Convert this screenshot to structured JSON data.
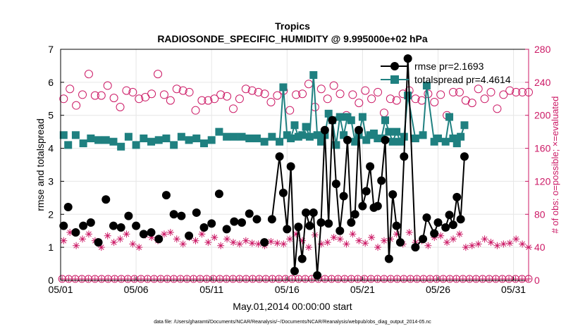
{
  "chart_data": {
    "type": "line",
    "title": "Tropics",
    "subtitle": "RADIOSONDE_SPECIFIC_HUMIDITY @ 9.995000e+02 hPa",
    "xlabel": "May.01,2014 00:00:00 start",
    "ylabel": "rmse and totalspread",
    "ylabel_right": "# of obs: o=possible; ×=evaluated",
    "footnote": "data file: /Users/gharamti/Documents/NCAR/Reanalysis/~/Documents/NCAR/Reanalysis/webpub/obs_diag_output_2014-05.nc",
    "xlim": [
      0,
      31
    ],
    "ylim": [
      0,
      7
    ],
    "ylim_right": [
      0,
      280
    ],
    "x_ticks": [
      0,
      5,
      10,
      15,
      20,
      25,
      30
    ],
    "x_tick_labels": [
      "05/01",
      "05/06",
      "05/11",
      "05/16",
      "05/21",
      "05/26",
      "05/31"
    ],
    "y_ticks": [
      0,
      1,
      2,
      3,
      4,
      5,
      6,
      7
    ],
    "y_tick_labels": [
      "0",
      "1",
      "2",
      "3",
      "4",
      "5",
      "6",
      "7"
    ],
    "y_right_ticks": [
      0,
      40,
      80,
      120,
      160,
      200,
      240,
      280
    ],
    "y_right_tick_labels": [
      "0",
      "40",
      "80",
      "120",
      "160",
      "200",
      "240",
      "280"
    ],
    "grid": true,
    "legend": "top-right",
    "colors": {
      "rmse": "#000000",
      "totalspread": "#1f8080",
      "obs": "#cc1a66"
    },
    "series": [
      {
        "name": "rmse",
        "legend_label": "rmse pr=2.1693",
        "axis": "left",
        "connect_from_day": 14,
        "values": [
          1.65,
          2.22,
          1.45,
          1.65,
          1.75,
          1.15,
          2.45,
          1.65,
          1.6,
          1.95,
          1.65,
          1.4,
          1.45,
          1.25,
          2.58,
          2.0,
          1.95,
          1.35,
          2.05,
          1.6,
          1.72,
          2.62,
          1.55,
          1.78,
          1.75,
          2.02,
          1.85,
          1.15,
          1.85,
          3.75,
          2.65,
          1.55,
          3.45,
          0.28,
          1.62,
          0.65,
          2.05,
          1.65,
          2.05,
          0.15,
          1.75,
          4.55,
          1.72,
          4.85,
          2.92,
          1.5,
          2.55,
          4.25,
          1.75,
          2.0,
          4.55,
          2.25,
          2.7,
          3.45,
          2.2,
          2.25,
          3.02,
          4.25,
          0.65,
          2.6,
          1.65,
          1.15,
          3.75,
          6.72,
          1.0,
          1.25,
          1.9,
          1.42,
          1.75,
          1.6,
          1.98,
          1.68,
          2.52,
          1.85,
          3.75
        ],
        "x": [
          0.2,
          0.5,
          1.0,
          1.5,
          2.0,
          2.5,
          3.0,
          3.5,
          4.0,
          4.5,
          5.0,
          5.5,
          6.0,
          6.5,
          7.0,
          7.5,
          8.0,
          8.5,
          9.0,
          9.5,
          10.0,
          10.5,
          11.0,
          11.5,
          12.0,
          12.5,
          13.0,
          13.5,
          14.0,
          14.5,
          14.75,
          15.0,
          15.25,
          15.5,
          15.75,
          16.0,
          16.25,
          16.5,
          16.75,
          17.0,
          17.25,
          17.5,
          17.75,
          18.0,
          18.25,
          18.5,
          18.75,
          19.0,
          19.25,
          19.5,
          19.75,
          20.0,
          20.25,
          20.5,
          20.75,
          21.0,
          21.25,
          21.5,
          21.75,
          22.0,
          22.25,
          22.5,
          22.75,
          23.0,
          23.5,
          24.0,
          24.25,
          24.75,
          25.0,
          25.5,
          25.75,
          26.0,
          26.25,
          26.5,
          26.75
        ]
      },
      {
        "name": "totalspread",
        "legend_label": "totalspread pr=4.4614",
        "axis": "left",
        "connect_from_day": 14,
        "x": [
          0.2,
          0.5,
          1.0,
          1.5,
          2.0,
          2.5,
          3.0,
          3.5,
          4.0,
          4.5,
          5.0,
          5.5,
          6.0,
          6.5,
          7.0,
          7.5,
          8.0,
          8.5,
          9.0,
          9.5,
          10.0,
          10.5,
          11.0,
          11.5,
          12.0,
          12.5,
          13.0,
          13.5,
          14.0,
          14.5,
          14.75,
          15.0,
          15.25,
          15.5,
          15.75,
          16.0,
          16.25,
          16.5,
          16.75,
          17.0,
          17.25,
          17.5,
          17.75,
          18.0,
          18.25,
          18.5,
          18.75,
          19.0,
          19.25,
          19.5,
          19.75,
          20.0,
          20.25,
          20.5,
          20.75,
          21.0,
          21.25,
          21.5,
          21.75,
          22.0,
          22.25,
          22.5,
          22.75,
          23.0,
          23.5,
          24.0,
          24.25,
          24.75,
          25.0,
          25.5,
          25.75,
          26.0,
          26.25,
          26.5,
          26.75
        ],
        "values": [
          4.4,
          4.1,
          4.4,
          4.15,
          4.3,
          4.25,
          4.25,
          4.2,
          4.05,
          4.35,
          4.1,
          4.3,
          4.2,
          4.25,
          4.3,
          4.1,
          4.35,
          4.25,
          4.3,
          4.15,
          4.25,
          4.5,
          4.35,
          4.35,
          4.35,
          4.3,
          4.3,
          4.2,
          4.35,
          4.2,
          5.85,
          4.4,
          4.3,
          4.7,
          4.35,
          4.4,
          4.65,
          4.35,
          6.22,
          4.4,
          4.2,
          4.4,
          5.05,
          4.85,
          4.1,
          4.95,
          4.4,
          4.95,
          4.85,
          4.2,
          4.4,
          4.95,
          4.25,
          4.4,
          4.45,
          4.3,
          4.3,
          4.85,
          4.5,
          4.2,
          4.5,
          4.2,
          4.35,
          5.6,
          4.3,
          4.4,
          5.9,
          4.2,
          4.3,
          4.2,
          4.95,
          4.3,
          4.15,
          4.35,
          4.7
        ]
      },
      {
        "name": "obs possible",
        "axis": "right",
        "marker": "circle",
        "values": [
          220,
          232,
          212,
          225,
          250,
          224,
          224,
          236,
          221,
          210,
          230,
          228,
          220,
          222,
          226,
          250,
          225,
          218,
          232,
          230,
          228,
          206,
          218,
          218,
          220,
          225,
          223,
          208,
          220,
          232,
          230,
          228,
          226,
          216,
          224,
          230,
          206,
          225,
          226,
          238,
          210,
          232,
          220,
          236,
          226,
          200,
          225,
          215,
          230,
          220,
          228,
          203,
          220,
          218,
          226,
          230,
          220,
          218,
          226,
          216,
          225,
          200,
          228,
          228,
          218,
          215,
          232,
          220,
          228,
          208,
          225,
          230,
          228,
          228,
          228
        ]
      },
      {
        "name": "obs evaluated",
        "axis": "right",
        "marker": "star",
        "values": [
          48,
          58,
          42,
          50,
          56,
          48,
          40,
          54,
          46,
          50,
          56,
          44,
          40,
          55,
          52,
          48,
          56,
          58,
          50,
          44,
          52,
          48,
          56,
          46,
          52,
          42,
          50,
          46,
          44,
          48,
          45,
          44,
          42,
          47,
          45,
          44,
          50,
          56,
          48,
          40,
          55,
          44,
          46,
          52,
          50,
          44,
          56,
          48,
          45,
          52,
          40,
          48,
          50,
          56,
          44,
          58,
          46,
          48,
          42,
          52,
          54,
          46,
          50,
          56,
          40,
          42,
          44,
          50,
          46,
          42,
          44,
          45,
          50,
          44,
          40
        ]
      }
    ],
    "obs_near_zero": "rows of circles and stars along y=0"
  }
}
